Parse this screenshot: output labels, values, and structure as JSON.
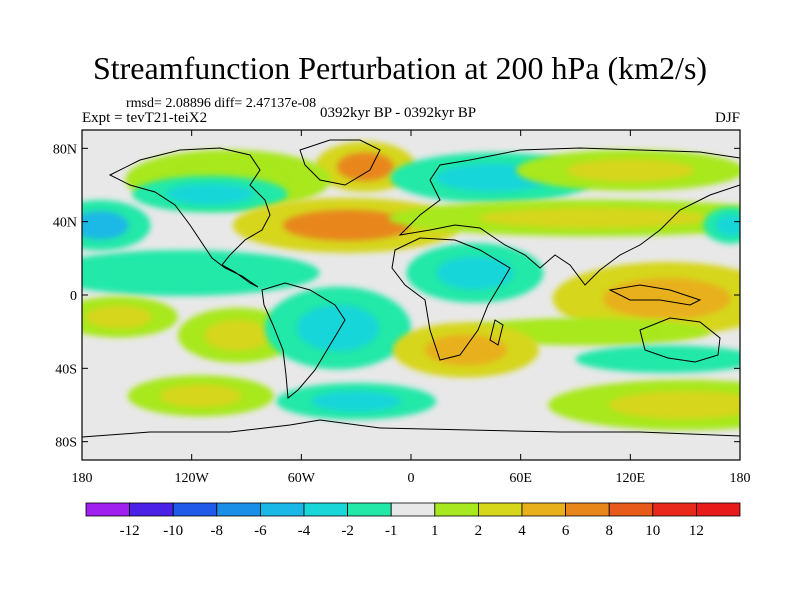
{
  "title": "Streamfunction Perturbation at 200 hPa (km2/s)",
  "stats": "rmsd= 2.08896 diff= 2.47137e-08",
  "experiment": "Expt = tevT21-teiX2",
  "period": "0392kyr BP - 0392kyr BP",
  "season": "DJF",
  "lat_ticks": [
    "80N",
    "40N",
    "0",
    "40S",
    "80S"
  ],
  "lon_ticks": [
    "180",
    "120W",
    "60W",
    "0",
    "60E",
    "120E",
    "180"
  ],
  "colorbar": {
    "labels": [
      "-12",
      "-10",
      "-8",
      "-6",
      "-4",
      "-2",
      "-1",
      "1",
      "2",
      "4",
      "6",
      "8",
      "10",
      "12"
    ],
    "colors": [
      "#a020f0",
      "#4b21e8",
      "#1f5ae8",
      "#1a8fe8",
      "#1ab8e6",
      "#19d6d9",
      "#22e8a8",
      "#e8e8e8",
      "#a8e81f",
      "#d6d61a",
      "#e8b01a",
      "#e8861a",
      "#e85a1a",
      "#e8281a",
      "#e81a1a"
    ]
  },
  "map_data": {
    "lon_range": [
      -180,
      180
    ],
    "lat_range": [
      -90,
      90
    ],
    "anomalies": [
      {
        "lon": -25,
        "lat": 70,
        "rx": 22,
        "ry": 11,
        "value": 6
      },
      {
        "lon": -100,
        "lat": 63,
        "rx": 45,
        "ry": 13,
        "value": 1.5
      },
      {
        "lon": -110,
        "lat": 55,
        "rx": 34,
        "ry": 8,
        "value": -2.5
      },
      {
        "lon": 45,
        "lat": 64,
        "rx": 45,
        "ry": 11,
        "value": -4
      },
      {
        "lon": 120,
        "lat": 68,
        "rx": 50,
        "ry": 9,
        "value": 2.5
      },
      {
        "lon": -35,
        "lat": 38,
        "rx": 50,
        "ry": 12,
        "value": 6
      },
      {
        "lon": -170,
        "lat": 38,
        "rx": 22,
        "ry": 11,
        "value": -5
      },
      {
        "lon": 100,
        "lat": 42,
        "rx": 90,
        "ry": 8,
        "value": 3
      },
      {
        "lon": 175,
        "lat": 38,
        "rx": 12,
        "ry": 8,
        "value": -4
      },
      {
        "lon": 35,
        "lat": 12,
        "rx": 30,
        "ry": 13,
        "value": -3.5
      },
      {
        "lon": -125,
        "lat": 12,
        "rx": 60,
        "ry": 10,
        "value": -1.5
      },
      {
        "lon": -95,
        "lat": -22,
        "rx": 26,
        "ry": 12,
        "value": 2
      },
      {
        "lon": -40,
        "lat": -18,
        "rx": 32,
        "ry": 18,
        "value": -3.5
      },
      {
        "lon": 140,
        "lat": -2,
        "rx": 50,
        "ry": 16,
        "value": 5
      },
      {
        "lon": 95,
        "lat": -20,
        "rx": 55,
        "ry": 6,
        "value": 1.5
      },
      {
        "lon": -160,
        "lat": -12,
        "rx": 26,
        "ry": 9,
        "value": 2
      },
      {
        "lon": 30,
        "lat": -30,
        "rx": 32,
        "ry": 12,
        "value": 5
      },
      {
        "lon": -115,
        "lat": -55,
        "rx": 32,
        "ry": 9,
        "value": 2
      },
      {
        "lon": -30,
        "lat": -58,
        "rx": 35,
        "ry": 8,
        "value": -3
      },
      {
        "lon": 150,
        "lat": -60,
        "rx": 60,
        "ry": 11,
        "value": 3.5
      },
      {
        "lon": 140,
        "lat": -35,
        "rx": 40,
        "ry": 6,
        "value": -1.5
      }
    ]
  }
}
